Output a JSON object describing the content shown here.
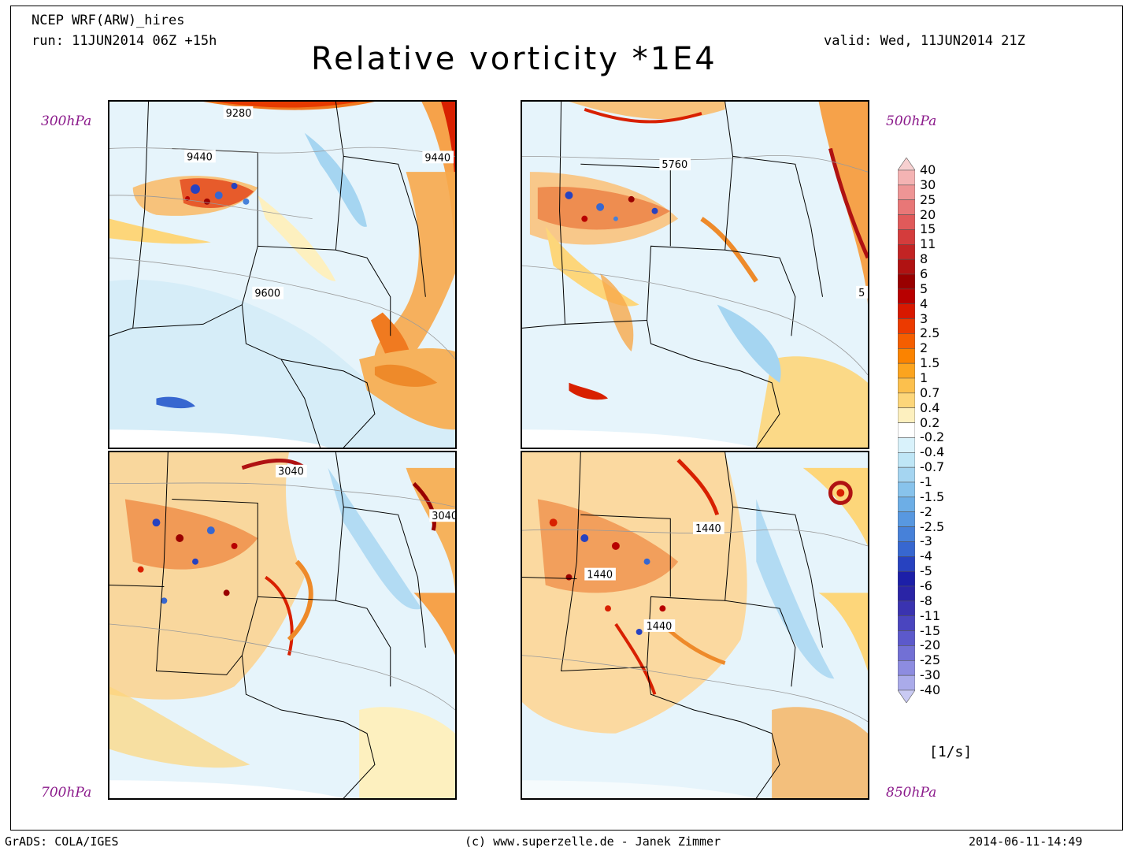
{
  "header": {
    "model": "NCEP WRF(ARW)_hires",
    "run": "run: 11JUN2014 06Z +15h",
    "valid": "valid: Wed, 11JUN2014 21Z",
    "title": "Relative vorticity *1E4"
  },
  "panels": [
    {
      "level": "300hPa",
      "contours": [
        "9280",
        "9440",
        "9440",
        "9600"
      ]
    },
    {
      "level": "500hPa",
      "contours": [
        "5760",
        "5"
      ]
    },
    {
      "level": "700hPa",
      "contours": [
        "3040",
        "3040"
      ]
    },
    {
      "level": "850hPa",
      "contours": [
        "1440",
        "1440",
        "1440"
      ]
    }
  ],
  "colorbar": {
    "labels": [
      "40",
      "30",
      "25",
      "20",
      "15",
      "11",
      "8",
      "6",
      "5",
      "4",
      "3",
      "2.5",
      "2",
      "1.5",
      "1",
      "0.7",
      "0.4",
      "0.2",
      "-0.2",
      "-0.4",
      "-0.7",
      "-1",
      "-1.5",
      "-2",
      "-2.5",
      "-3",
      "-4",
      "-5",
      "-6",
      "-8",
      "-11",
      "-15",
      "-20",
      "-25",
      "-30",
      "-40"
    ],
    "colors": [
      "#f7d0d0",
      "#f4b3b3",
      "#ee9595",
      "#e87777",
      "#e05a5a",
      "#d43c3c",
      "#c22424",
      "#b01212",
      "#990000",
      "#b80000",
      "#d81800",
      "#ec3a00",
      "#f55e00",
      "#fb8300",
      "#fca41e",
      "#fcc04d",
      "#fdd67a",
      "#fdf0bf",
      "#ffffff",
      "#d9f2fb",
      "#bfe6f6",
      "#a5d5f1",
      "#88c3ec",
      "#6daee6",
      "#5898e0",
      "#4781d9",
      "#3767d0",
      "#2742c0",
      "#1c1fa8",
      "#2a24a6",
      "#3a33b0",
      "#4a45bf",
      "#5c59cb",
      "#7270d5",
      "#8d8ce0",
      "#aaabea",
      "#c9caf3"
    ],
    "unit": "[1/s]"
  },
  "footer": {
    "left": "GrADS: COLA/IGES",
    "center": "(c) www.superzelle.de - Janek Zimmer",
    "right": "2014-06-11-14:49"
  }
}
